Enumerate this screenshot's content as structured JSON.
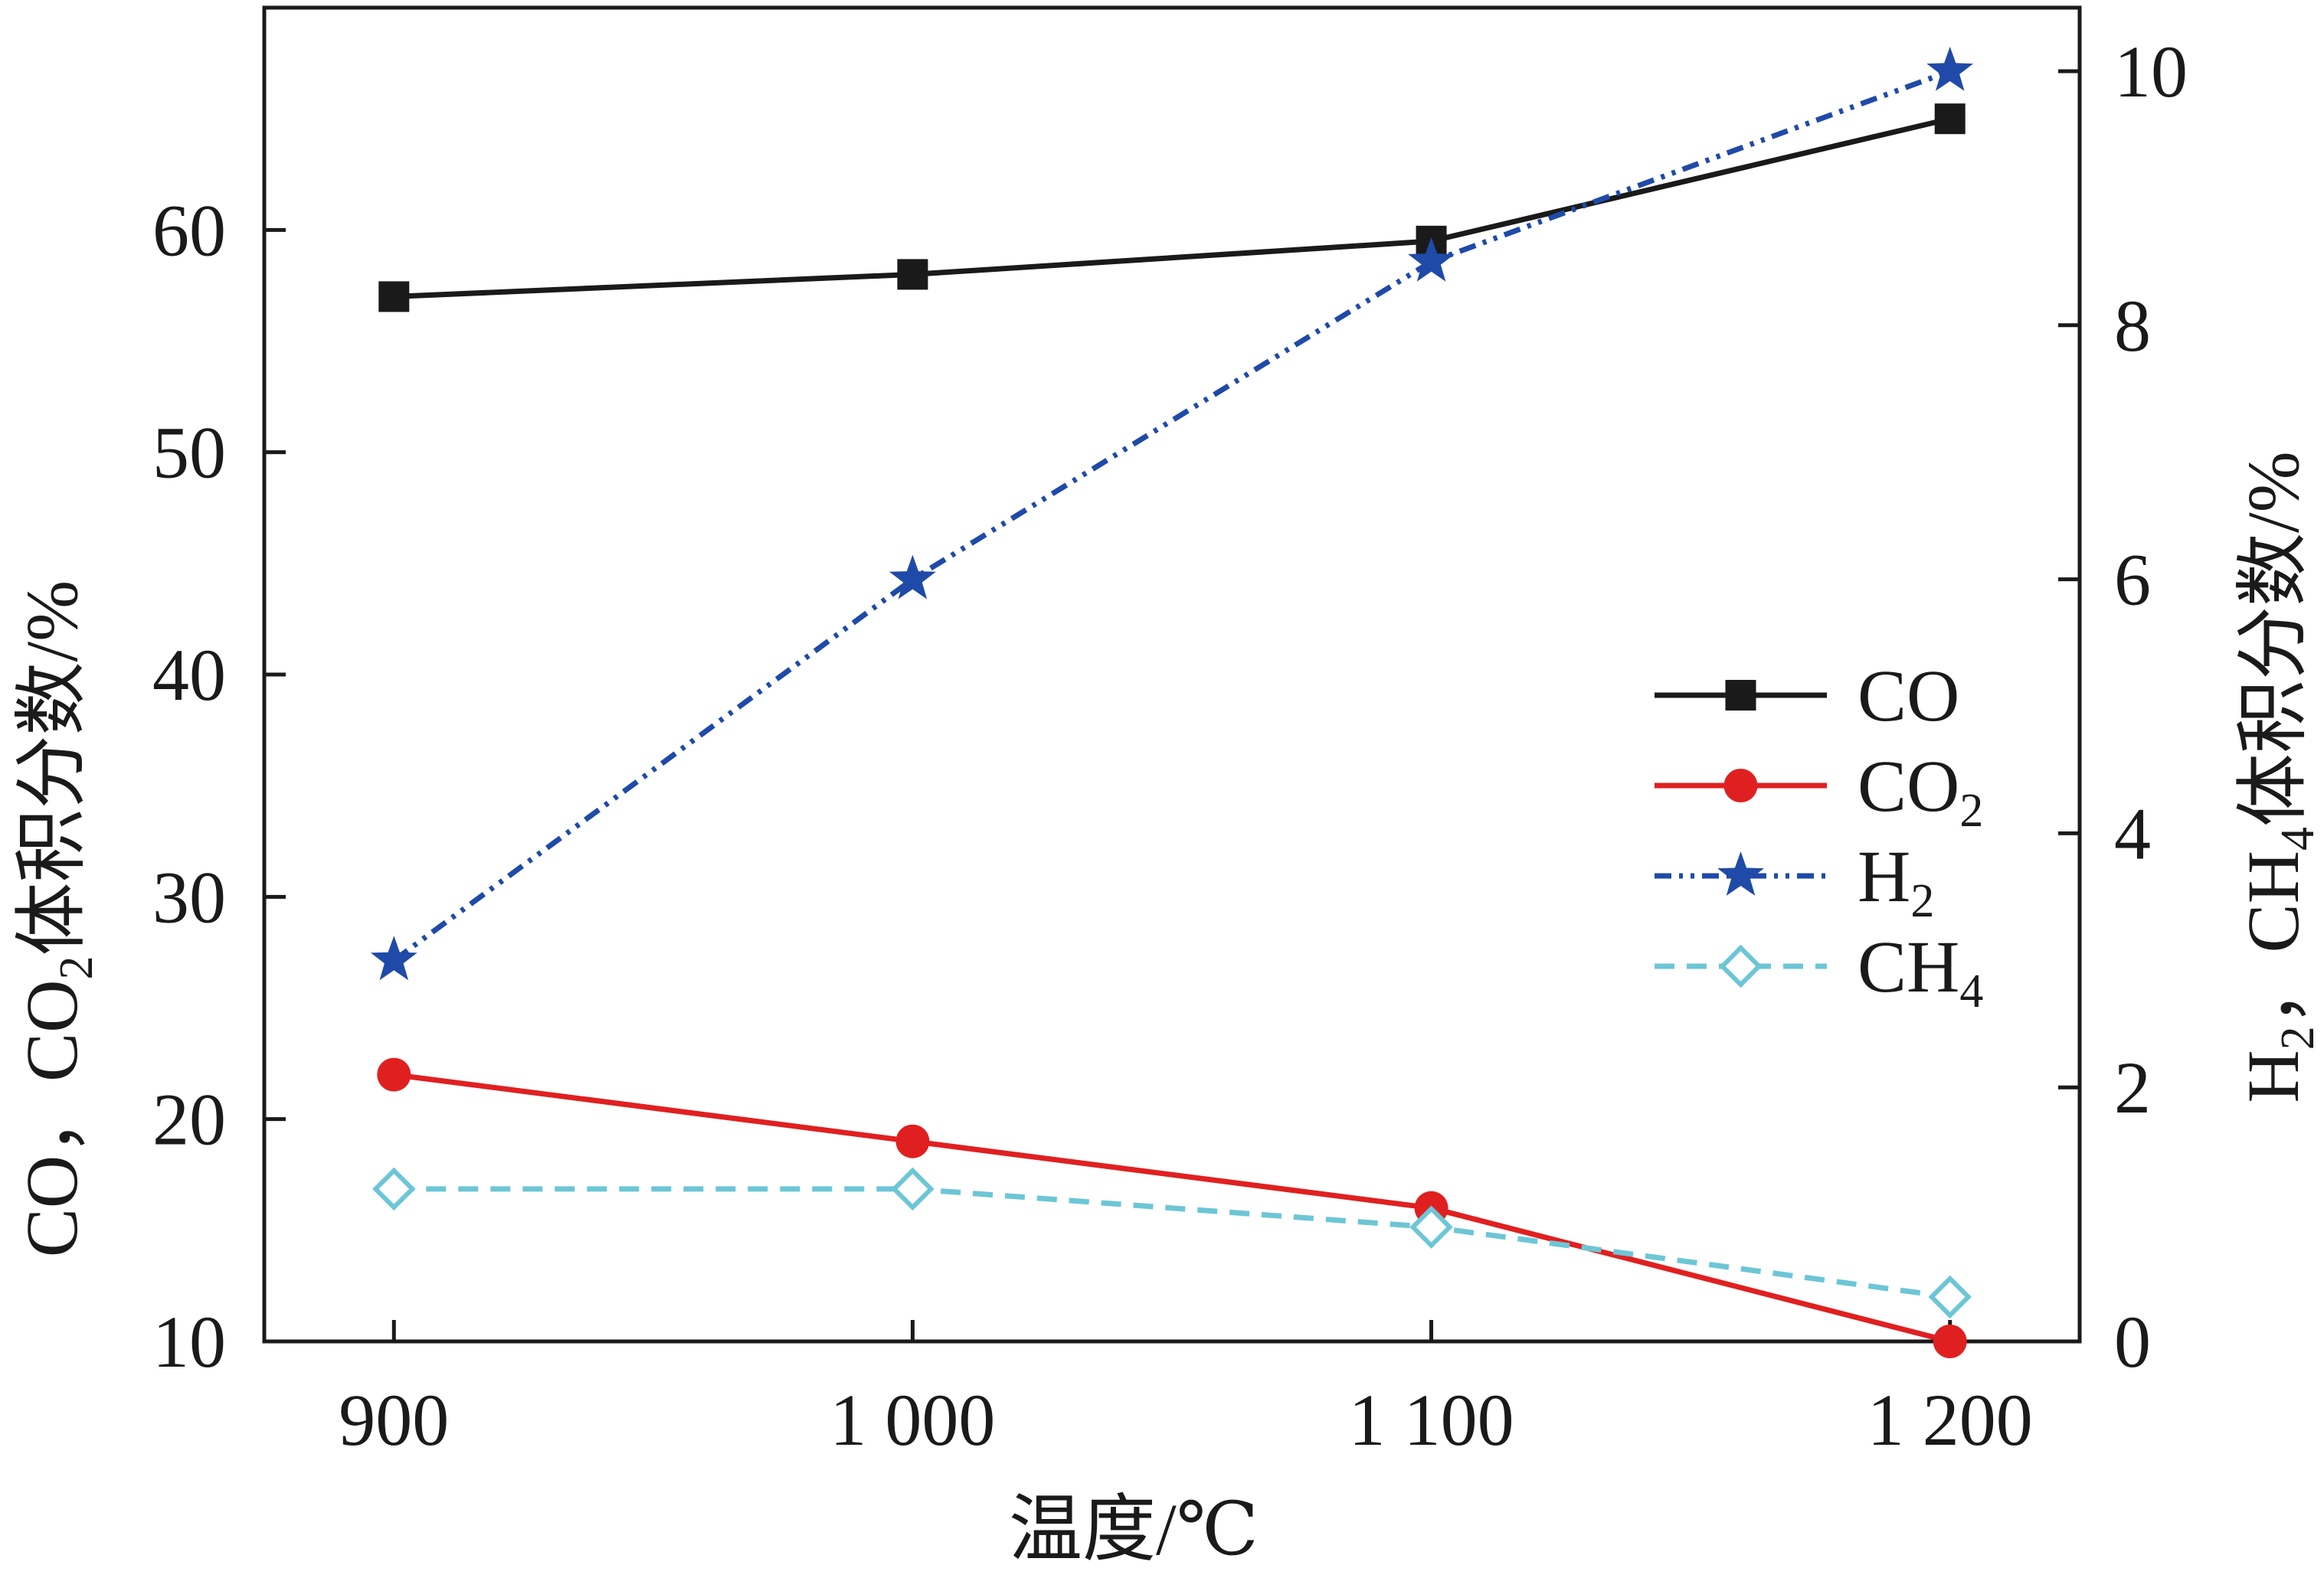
{
  "chart_data": {
    "type": "line",
    "categories": [
      "900",
      "1 000",
      "1 100",
      "1 200"
    ],
    "x": [
      900,
      1000,
      1100,
      1200
    ],
    "xlim": [
      875,
      1225
    ],
    "ylim_left": [
      10,
      70
    ],
    "ylim_right": [
      0,
      10.5
    ],
    "left_ticks": [
      10,
      20,
      30,
      40,
      50,
      60
    ],
    "right_ticks": [
      0,
      2,
      4,
      6,
      8,
      10
    ],
    "xlabel": "温度/℃",
    "ylabel_left": {
      "main": "CO，CO",
      "sub": "2",
      "tail": "体积分数/%"
    },
    "ylabel_right": {
      "h": "H",
      "sub1": "2",
      "mid": "，CH",
      "sub2": "4",
      "tail": "体积分数/%"
    },
    "legend_position": "center-right",
    "grid": false,
    "series": [
      {
        "name": "CO",
        "name_main": "CO",
        "name_sub": "",
        "axis": "left",
        "values": [
          57,
          58,
          59.5,
          65
        ],
        "color": "#1a1a1a",
        "marker": "square",
        "dash": ""
      },
      {
        "name": "CO2",
        "name_main": "CO",
        "name_sub": "2",
        "axis": "left",
        "values": [
          22,
          19,
          16,
          10
        ],
        "color": "#e02020",
        "marker": "circle",
        "dash": ""
      },
      {
        "name": "H2",
        "name_main": "H",
        "name_sub": "2",
        "axis": "right",
        "values": [
          3.0,
          6.0,
          8.5,
          10.0
        ],
        "color": "#1f4aa8",
        "marker": "star",
        "dash": "22,10,5,10,5,10"
      },
      {
        "name": "CH4",
        "name_main": "CH",
        "name_sub": "4",
        "axis": "right",
        "values": [
          1.2,
          1.2,
          0.9,
          0.35
        ],
        "color": "#6cc6d6",
        "marker": "diamond",
        "dash": "26,16"
      }
    ]
  }
}
